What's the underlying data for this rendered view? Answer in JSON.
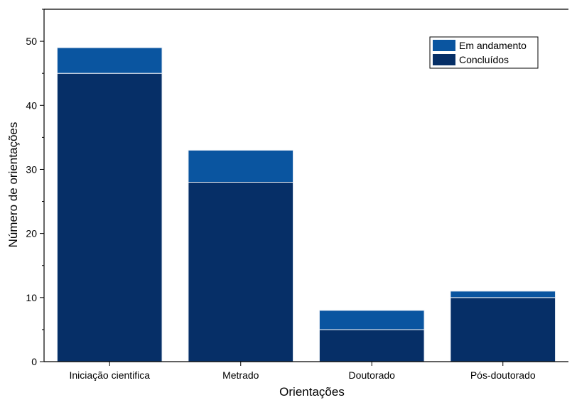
{
  "chart_data": {
    "type": "bar",
    "stacked": true,
    "categories": [
      "Iniciação cientifica",
      "Metrado",
      "Doutorado",
      "Pós-doutorado"
    ],
    "series": [
      {
        "name": "Concluídos",
        "values": [
          45,
          28,
          5,
          10
        ],
        "color": "#062f67"
      },
      {
        "name": "Em andamento",
        "values": [
          4,
          5,
          3,
          1
        ],
        "color": "#0a55a0"
      }
    ],
    "totals": [
      49,
      33,
      8,
      11
    ],
    "xlabel": "Orientações",
    "ylabel": "Número de orientações",
    "ylim": [
      0,
      55
    ],
    "yticks": [
      0,
      10,
      20,
      30,
      40,
      50
    ],
    "grid": false,
    "legend": {
      "placement": "top-right",
      "entries": [
        "Em andamento",
        "Concluídos"
      ]
    }
  }
}
